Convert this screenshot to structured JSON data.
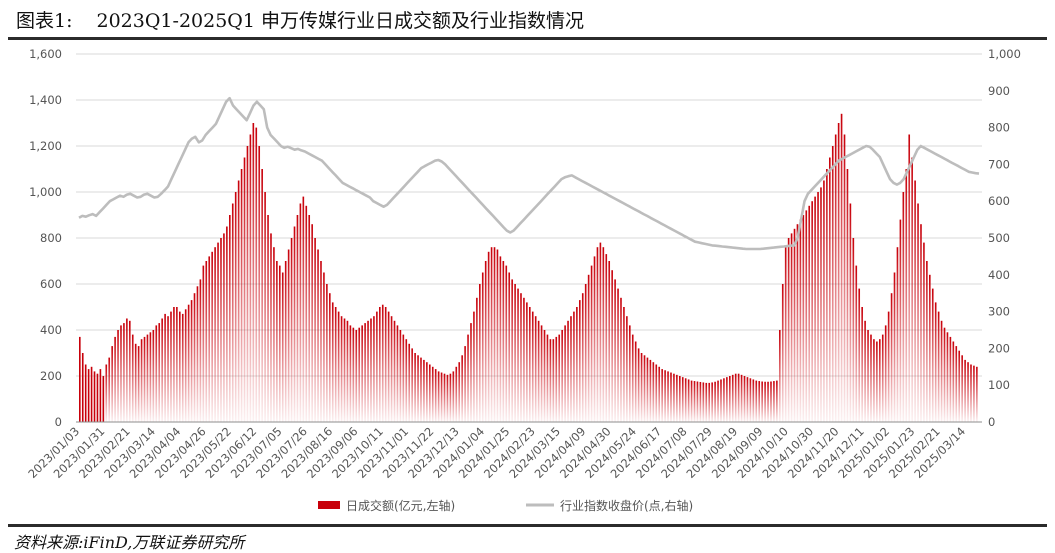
{
  "header": {
    "figure_label": "图表1:",
    "title": "2023Q1-2025Q1 申万传媒行业日成交额及行业指数情况"
  },
  "footer": {
    "source": "资料来源:iFinD,万联证券研究所"
  },
  "colors": {
    "bar": "#c8000a",
    "line": "#bdbdbd",
    "grid": "#d9d9d9"
  },
  "chart_data": {
    "type": "bar+line",
    "legend_position": "bottom-center",
    "grid": true,
    "y_left": {
      "lim": [
        0,
        1600
      ],
      "ticks": [
        "0",
        "200",
        "400",
        "600",
        "800",
        "1,000",
        "1,200",
        "1,400",
        "1,600"
      ]
    },
    "y_right": {
      "lim": [
        0,
        1000
      ],
      "ticks": [
        "0",
        "100",
        "200",
        "300",
        "400",
        "500",
        "600",
        "700",
        "800",
        "900",
        "1,000"
      ]
    },
    "x_tick_labels": [
      "2023/01/03",
      "2023/01/31",
      "2023/02/21",
      "2023/03/14",
      "2023/04/04",
      "2023/04/26",
      "2023/05/22",
      "2023/06/12",
      "2023/07/05",
      "2023/07/26",
      "2023/08/16",
      "2023/09/06",
      "2023/10/11",
      "2023/11/01",
      "2023/11/22",
      "2023/12/13",
      "2024/01/04",
      "2024/01/25",
      "2024/02/23",
      "2024/03/15",
      "2024/04/09",
      "2024/04/30",
      "2024/05/24",
      "2024/06/17",
      "2024/07/08",
      "2024/07/29",
      "2024/08/19",
      "2024/09/09",
      "2024/10/10",
      "2024/10/30",
      "2024/11/20",
      "2024/12/11",
      "2025/01/02",
      "2025/01/23",
      "2025/02/21",
      "2025/03/14"
    ],
    "series": [
      {
        "name": "日成交额(亿元,左轴)",
        "axis": "left",
        "kind": "bar",
        "values": [
          370,
          300,
          250,
          230,
          240,
          220,
          210,
          230,
          200,
          250,
          280,
          330,
          370,
          400,
          420,
          430,
          450,
          440,
          380,
          340,
          330,
          360,
          370,
          380,
          390,
          400,
          420,
          430,
          450,
          470,
          460,
          480,
          500,
          500,
          480,
          470,
          490,
          510,
          530,
          560,
          590,
          620,
          680,
          700,
          720,
          740,
          760,
          780,
          800,
          820,
          850,
          900,
          950,
          1000,
          1050,
          1100,
          1150,
          1200,
          1250,
          1300,
          1280,
          1200,
          1100,
          1000,
          900,
          820,
          760,
          700,
          680,
          650,
          700,
          750,
          800,
          850,
          900,
          950,
          980,
          940,
          900,
          860,
          800,
          750,
          700,
          650,
          600,
          560,
          520,
          500,
          480,
          460,
          450,
          440,
          420,
          410,
          400,
          410,
          420,
          430,
          440,
          450,
          460,
          480,
          500,
          510,
          500,
          480,
          460,
          440,
          420,
          400,
          380,
          360,
          340,
          320,
          300,
          290,
          280,
          270,
          260,
          250,
          240,
          230,
          220,
          215,
          210,
          205,
          210,
          220,
          240,
          260,
          290,
          330,
          380,
          430,
          480,
          540,
          600,
          650,
          700,
          740,
          760,
          760,
          750,
          720,
          700,
          680,
          650,
          620,
          600,
          580,
          560,
          540,
          520,
          500,
          480,
          460,
          440,
          420,
          400,
          380,
          360,
          360,
          370,
          380,
          400,
          420,
          440,
          460,
          480,
          500,
          530,
          560,
          600,
          640,
          680,
          720,
          760,
          780,
          760,
          730,
          700,
          660,
          620,
          580,
          540,
          500,
          460,
          420,
          380,
          350,
          320,
          300,
          290,
          280,
          270,
          260,
          250,
          240,
          230,
          225,
          220,
          215,
          210,
          205,
          200,
          195,
          190,
          185,
          180,
          178,
          176,
          174,
          172,
          170,
          170,
          172,
          175,
          180,
          185,
          190,
          195,
          200,
          205,
          210,
          210,
          205,
          200,
          195,
          190,
          185,
          180,
          178,
          176,
          175,
          175,
          176,
          178,
          180,
          400,
          600,
          760,
          800,
          820,
          840,
          860,
          880,
          900,
          920,
          940,
          960,
          980,
          1000,
          1020,
          1050,
          1100,
          1150,
          1200,
          1250,
          1300,
          1340,
          1250,
          1100,
          950,
          800,
          680,
          580,
          500,
          440,
          400,
          380,
          360,
          350,
          360,
          380,
          420,
          480,
          560,
          650,
          760,
          880,
          1000,
          1100,
          1250,
          1150,
          1050,
          950,
          860,
          780,
          700,
          640,
          580,
          520,
          480,
          440,
          410,
          390,
          370,
          350,
          330,
          310,
          290,
          270,
          260,
          250,
          245,
          240
        ],
        "note_max": 1340
      },
      {
        "name": "行业指数收盘价(点,右轴)",
        "axis": "right",
        "kind": "line",
        "values": [
          555,
          560,
          558,
          562,
          565,
          560,
          570,
          580,
          590,
          600,
          605,
          610,
          615,
          612,
          618,
          620,
          615,
          610,
          612,
          618,
          620,
          615,
          610,
          612,
          620,
          630,
          640,
          660,
          680,
          700,
          720,
          740,
          760,
          770,
          775,
          760,
          765,
          780,
          790,
          800,
          810,
          830,
          850,
          870,
          880,
          860,
          850,
          840,
          830,
          820,
          840,
          860,
          870,
          860,
          850,
          800,
          780,
          770,
          760,
          750,
          745,
          748,
          744,
          740,
          742,
          738,
          735,
          730,
          725,
          720,
          715,
          710,
          700,
          690,
          680,
          670,
          660,
          650,
          645,
          640,
          635,
          630,
          625,
          620,
          615,
          610,
          600,
          595,
          590,
          585,
          590,
          600,
          610,
          620,
          630,
          640,
          650,
          660,
          670,
          680,
          690,
          695,
          700,
          705,
          710,
          712,
          708,
          700,
          690,
          680,
          670,
          660,
          650,
          640,
          630,
          620,
          610,
          600,
          590,
          580,
          570,
          560,
          550,
          540,
          530,
          520,
          515,
          520,
          530,
          540,
          550,
          560,
          570,
          580,
          590,
          600,
          610,
          620,
          630,
          640,
          650,
          660,
          665,
          668,
          670,
          665,
          660,
          655,
          650,
          645,
          640,
          635,
          630,
          625,
          620,
          615,
          610,
          605,
          600,
          595,
          590,
          585,
          580,
          575,
          570,
          565,
          560,
          555,
          550,
          545,
          540,
          535,
          530,
          525,
          520,
          515,
          510,
          505,
          500,
          495,
          490,
          488,
          486,
          484,
          482,
          480,
          479,
          478,
          477,
          476,
          475,
          474,
          473,
          472,
          471,
          470,
          470,
          470,
          470,
          470,
          471,
          472,
          473,
          474,
          475,
          476,
          477,
          478,
          479,
          480,
          500,
          550,
          600,
          620,
          630,
          640,
          650,
          660,
          670,
          680,
          690,
          700,
          710,
          715,
          720,
          725,
          730,
          735,
          740,
          745,
          750,
          748,
          740,
          730,
          720,
          700,
          680,
          660,
          650,
          645,
          650,
          660,
          680,
          700,
          720,
          740,
          750,
          745,
          740,
          735,
          730,
          725,
          720,
          715,
          710,
          705,
          700,
          695,
          690,
          685,
          680,
          678,
          676,
          675
        ]
      }
    ]
  }
}
